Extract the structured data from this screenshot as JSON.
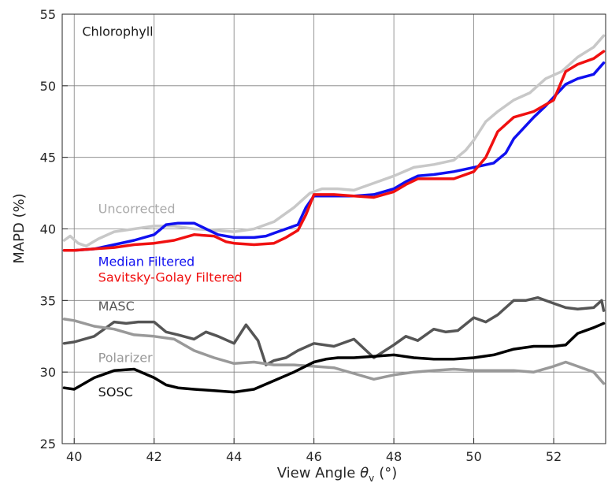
{
  "chart_data": {
    "type": "line",
    "title": "Chlorophyll",
    "xlabel": "View Angle",
    "xlabel_symbol": "θ",
    "xlabel_subscript": "v",
    "xlabel_unit": "(°)",
    "ylabel": "MAPD (%)",
    "xlim": [
      39.7,
      53.3
    ],
    "ylim": [
      25,
      55
    ],
    "xticks": [
      40,
      42,
      44,
      46,
      48,
      50,
      52
    ],
    "yticks": [
      25,
      30,
      35,
      40,
      45,
      50,
      55
    ],
    "grid": true,
    "legend": "inline labels",
    "series": [
      {
        "name": "Uncorrected",
        "color": "#c8c8c8",
        "x": [
          39.75,
          39.9,
          40.1,
          40.3,
          40.6,
          41.0,
          41.5,
          42.0,
          42.5,
          43.0,
          43.5,
          44.0,
          44.5,
          45.0,
          45.5,
          45.9,
          46.2,
          46.6,
          47.0,
          47.5,
          48.0,
          48.5,
          49.0,
          49.5,
          49.8,
          50.0,
          50.3,
          50.6,
          51.0,
          51.4,
          51.8,
          52.2,
          52.6,
          53.0,
          53.25
        ],
        "y": [
          39.2,
          39.5,
          39.0,
          38.8,
          39.3,
          39.8,
          40.0,
          40.2,
          40.2,
          40.0,
          39.9,
          39.8,
          40.0,
          40.5,
          41.5,
          42.5,
          42.8,
          42.8,
          42.7,
          43.2,
          43.7,
          44.3,
          44.5,
          44.8,
          45.5,
          46.2,
          47.5,
          48.2,
          49.0,
          49.5,
          50.5,
          51.0,
          52.0,
          52.7,
          53.5
        ]
      },
      {
        "name": "Median Filtered",
        "color": "#1010f0",
        "x": [
          39.75,
          40.0,
          40.5,
          41.0,
          41.5,
          42.0,
          42.3,
          42.6,
          43.0,
          43.3,
          43.6,
          44.0,
          44.5,
          44.8,
          45.0,
          45.3,
          45.6,
          45.8,
          46.0,
          46.5,
          47.0,
          47.5,
          48.0,
          48.3,
          48.6,
          49.0,
          49.5,
          50.0,
          50.5,
          50.8,
          51.0,
          51.5,
          51.8,
          52.0,
          52.3,
          52.6,
          53.0,
          53.25
        ],
        "y": [
          38.5,
          38.5,
          38.6,
          38.9,
          39.2,
          39.6,
          40.3,
          40.4,
          40.4,
          40.0,
          39.6,
          39.4,
          39.4,
          39.5,
          39.7,
          40.0,
          40.3,
          41.5,
          42.3,
          42.3,
          42.3,
          42.4,
          42.8,
          43.3,
          43.7,
          43.8,
          44.0,
          44.3,
          44.6,
          45.3,
          46.3,
          47.8,
          48.6,
          49.2,
          50.1,
          50.5,
          50.8,
          51.6
        ]
      },
      {
        "name": "Savitsky-Golay Filtered",
        "color": "#f01010",
        "x": [
          39.75,
          40.0,
          40.5,
          41.0,
          41.5,
          42.0,
          42.5,
          43.0,
          43.5,
          43.8,
          44.0,
          44.5,
          45.0,
          45.3,
          45.6,
          45.8,
          46.0,
          46.5,
          47.0,
          47.5,
          48.0,
          48.3,
          48.6,
          49.0,
          49.5,
          50.0,
          50.3,
          50.6,
          51.0,
          51.5,
          52.0,
          52.3,
          52.6,
          53.0,
          53.25
        ],
        "y": [
          38.5,
          38.5,
          38.6,
          38.7,
          38.9,
          39.0,
          39.2,
          39.6,
          39.5,
          39.1,
          39.0,
          38.9,
          39.0,
          39.4,
          39.9,
          41.0,
          42.4,
          42.4,
          42.3,
          42.2,
          42.6,
          43.1,
          43.5,
          43.5,
          43.5,
          44.0,
          45.0,
          46.8,
          47.8,
          48.2,
          49.0,
          51.0,
          51.5,
          51.9,
          52.4
        ]
      },
      {
        "name": "MASC",
        "color": "#555555",
        "x": [
          39.75,
          40.0,
          40.5,
          41.0,
          41.3,
          41.6,
          42.0,
          42.3,
          42.6,
          43.0,
          43.3,
          43.6,
          44.0,
          44.3,
          44.6,
          44.8,
          45.0,
          45.3,
          45.6,
          46.0,
          46.5,
          47.0,
          47.5,
          48.0,
          48.3,
          48.6,
          49.0,
          49.3,
          49.6,
          50.0,
          50.3,
          50.6,
          51.0,
          51.3,
          51.6,
          52.0,
          52.3,
          52.6,
          53.0,
          53.2,
          53.25
        ],
        "y": [
          32.0,
          32.1,
          32.5,
          33.5,
          33.4,
          33.5,
          33.5,
          32.8,
          32.6,
          32.3,
          32.8,
          32.5,
          32.0,
          33.3,
          32.2,
          30.5,
          30.8,
          31.0,
          31.5,
          32.0,
          31.8,
          32.3,
          31.0,
          31.9,
          32.5,
          32.2,
          33.0,
          32.8,
          32.9,
          33.8,
          33.5,
          34.0,
          35.0,
          35.0,
          35.2,
          34.8,
          34.5,
          34.4,
          34.5,
          35.0,
          34.3
        ]
      },
      {
        "name": "Polarizer",
        "color": "#999999",
        "x": [
          39.75,
          40.0,
          40.5,
          41.0,
          41.5,
          42.0,
          42.5,
          43.0,
          43.5,
          44.0,
          44.5,
          45.0,
          45.5,
          46.0,
          46.5,
          47.0,
          47.5,
          48.0,
          48.5,
          49.0,
          49.5,
          50.0,
          50.5,
          51.0,
          51.5,
          52.0,
          52.3,
          52.6,
          53.0,
          53.25
        ],
        "y": [
          33.7,
          33.6,
          33.2,
          33.0,
          32.6,
          32.5,
          32.3,
          31.5,
          31.0,
          30.6,
          30.7,
          30.5,
          30.5,
          30.4,
          30.3,
          29.9,
          29.5,
          29.8,
          30.0,
          30.1,
          30.2,
          30.1,
          30.1,
          30.1,
          30.0,
          30.4,
          30.7,
          30.4,
          30.0,
          29.2
        ]
      },
      {
        "name": "SOSC",
        "color": "#000000",
        "x": [
          39.75,
          40.0,
          40.5,
          41.0,
          41.5,
          42.0,
          42.3,
          42.6,
          43.0,
          43.5,
          44.0,
          44.5,
          45.0,
          45.5,
          46.0,
          46.3,
          46.6,
          47.0,
          47.5,
          48.0,
          48.5,
          49.0,
          49.5,
          50.0,
          50.5,
          51.0,
          51.5,
          52.0,
          52.3,
          52.6,
          53.0,
          53.25
        ],
        "y": [
          28.9,
          28.8,
          29.6,
          30.1,
          30.2,
          29.6,
          29.1,
          28.9,
          28.8,
          28.7,
          28.6,
          28.8,
          29.4,
          30.0,
          30.7,
          30.9,
          31.0,
          31.0,
          31.1,
          31.2,
          31.0,
          30.9,
          30.9,
          31.0,
          31.2,
          31.6,
          31.8,
          31.8,
          31.9,
          32.7,
          33.1,
          33.4
        ]
      }
    ],
    "annotations": [
      {
        "text": "Chlorophyll",
        "x": 40.2,
        "y": 53.5,
        "color": "#1a1a1a"
      },
      {
        "text": "Uncorrected",
        "x": 40.6,
        "y": 41.1,
        "color": "#aaaaaa"
      },
      {
        "text": "Median Filtered",
        "x": 40.6,
        "y": 37.4,
        "color": "#1010f0"
      },
      {
        "text": "Savitsky-Golay Filtered",
        "x": 40.6,
        "y": 36.3,
        "color": "#f01010"
      },
      {
        "text": "MASC",
        "x": 40.6,
        "y": 34.3,
        "color": "#555555"
      },
      {
        "text": "Polarizer",
        "x": 40.6,
        "y": 30.7,
        "color": "#999999"
      },
      {
        "text": "SOSC",
        "x": 40.6,
        "y": 28.3,
        "color": "#111111"
      }
    ]
  }
}
